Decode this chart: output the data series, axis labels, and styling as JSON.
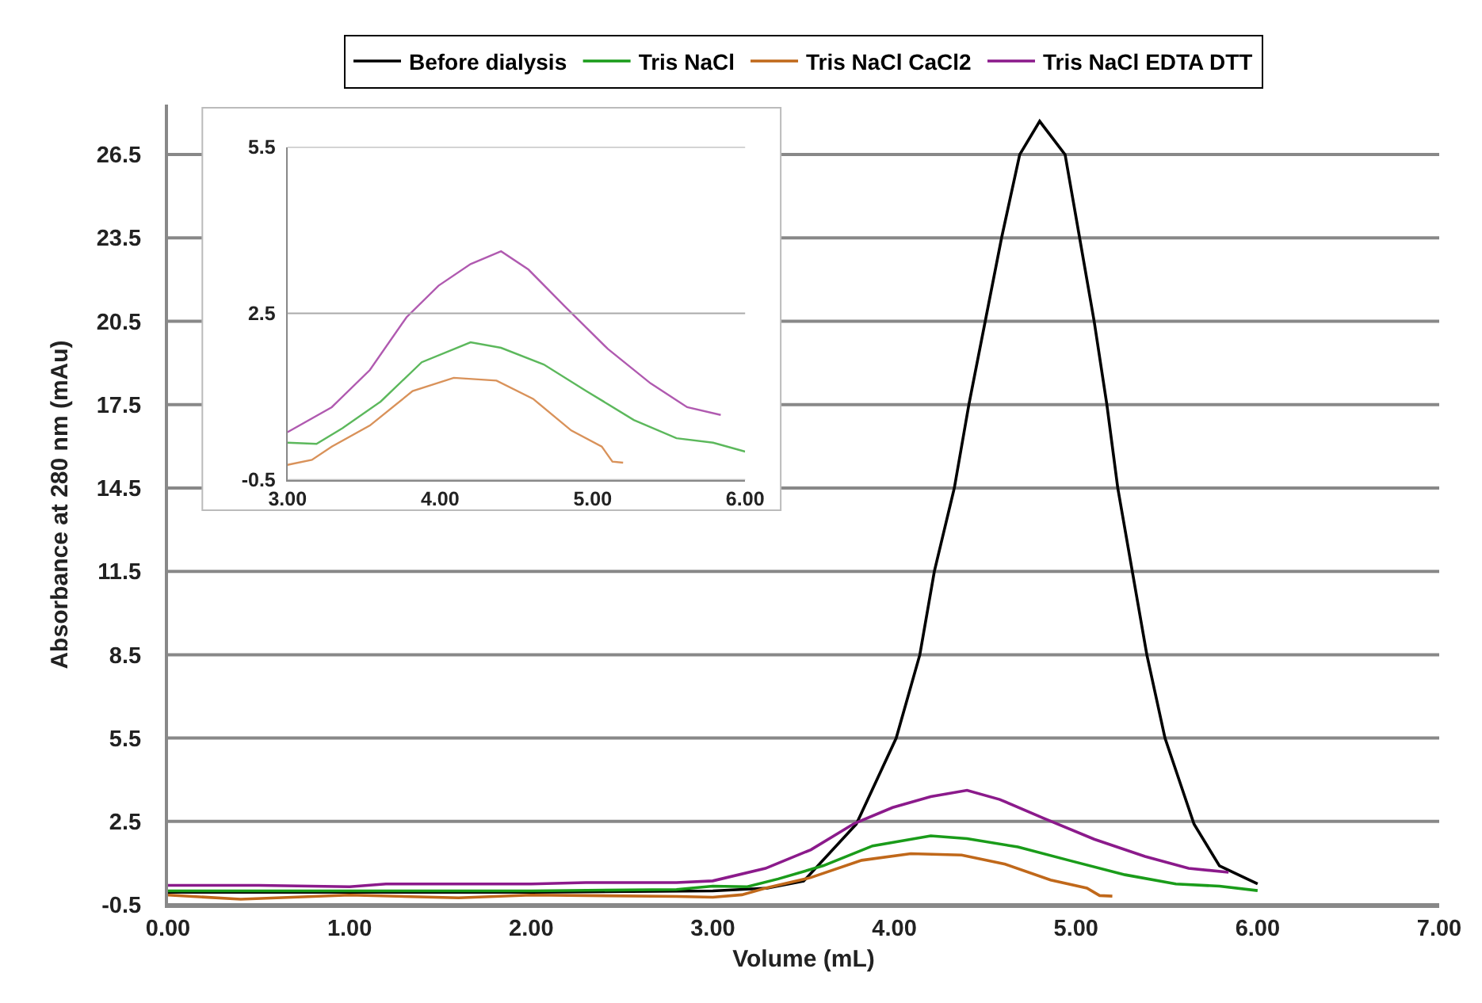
{
  "chart_data": [
    {
      "type": "line",
      "xlabel": "Volume (mL)",
      "ylabel": "Absorbance at 280 nm (mAu)",
      "xlim": [
        0,
        7
      ],
      "ylim": [
        -0.5,
        28.3
      ],
      "xticks": [
        {
          "value": 0,
          "label": "0.00"
        },
        {
          "value": 1,
          "label": "1.00"
        },
        {
          "value": 2,
          "label": "2.00"
        },
        {
          "value": 3,
          "label": "3.00"
        },
        {
          "value": 4,
          "label": "4.00"
        },
        {
          "value": 5,
          "label": "5.00"
        },
        {
          "value": 6,
          "label": "6.00"
        },
        {
          "value": 7,
          "label": "7.00"
        }
      ],
      "yticks": [
        -0.5,
        2.5,
        5.5,
        8.5,
        11.5,
        14.5,
        17.5,
        20.5,
        23.5,
        26.5
      ],
      "grid": "y",
      "legend": "top",
      "marker": "none",
      "line_style": "solid",
      "series": [
        {
          "name": "Before dialysis",
          "color": "#000000",
          "x": [
            0,
            1,
            2,
            3,
            3.3,
            3.5,
            3.79,
            4.01,
            4.14,
            4.22,
            4.33,
            4.41,
            4.5,
            4.59,
            4.69,
            4.8,
            4.94,
            5.02,
            5.1,
            5.17,
            5.23,
            5.31,
            5.39,
            5.49,
            5.65,
            5.79,
            6.0
          ],
          "values": [
            -0.05,
            -0.05,
            -0.05,
            0.0,
            0.1,
            0.35,
            2.4,
            5.5,
            8.5,
            11.5,
            14.5,
            17.5,
            20.5,
            23.5,
            26.5,
            27.7,
            26.5,
            23.5,
            20.5,
            17.5,
            14.5,
            11.5,
            8.5,
            5.5,
            2.4,
            0.9,
            0.25
          ]
        },
        {
          "name": "Tris NaCl",
          "color": "#1a9c1a",
          "x": [
            0,
            1,
            2,
            2.8,
            3.0,
            3.19,
            3.36,
            3.61,
            3.88,
            4.2,
            4.4,
            4.68,
            4.96,
            5.27,
            5.55,
            5.79,
            6.0
          ],
          "values": [
            0.0,
            0.0,
            0.0,
            0.05,
            0.17,
            0.15,
            0.43,
            0.91,
            1.62,
            1.98,
            1.88,
            1.58,
            1.1,
            0.58,
            0.25,
            0.17,
            0.01
          ]
        },
        {
          "name": "Tris NaCl CaCl2",
          "color": "#c0681a",
          "x": [
            0,
            0.4,
            1,
            1.6,
            2,
            2.8,
            3.0,
            3.16,
            3.29,
            3.54,
            3.82,
            4.09,
            4.37,
            4.61,
            4.86,
            5.06,
            5.13,
            5.2
          ],
          "values": [
            -0.15,
            -0.3,
            -0.15,
            -0.25,
            -0.15,
            -0.2,
            -0.23,
            -0.14,
            0.1,
            0.48,
            1.1,
            1.34,
            1.29,
            0.96,
            0.39,
            0.1,
            -0.17,
            -0.19
          ]
        },
        {
          "name": "Tris NaCl EDTA DTT",
          "color": "#8b1a8b",
          "x": [
            0,
            0.5,
            1,
            1.2,
            2,
            2.3,
            2.8,
            3.0,
            3.29,
            3.54,
            3.78,
            3.99,
            4.2,
            4.4,
            4.58,
            4.82,
            5.1,
            5.38,
            5.62,
            5.84
          ],
          "values": [
            0.2,
            0.2,
            0.15,
            0.25,
            0.25,
            0.3,
            0.3,
            0.36,
            0.81,
            1.48,
            2.43,
            3.0,
            3.39,
            3.62,
            3.29,
            2.62,
            1.86,
            1.24,
            0.81,
            0.67
          ]
        }
      ]
    },
    {
      "type": "line",
      "xlim": [
        3,
        6
      ],
      "ylim": [
        -0.5,
        5.5
      ],
      "xticks": [
        {
          "value": 3,
          "label": "3.00"
        },
        {
          "value": 4,
          "label": "4.00"
        },
        {
          "value": 5,
          "label": "5.00"
        },
        {
          "value": 6,
          "label": "6.00"
        }
      ],
      "yticks": [
        -0.5,
        2.5,
        5.5
      ],
      "grid": "y",
      "legend": false,
      "marker": "none",
      "line_style": "solid",
      "series": [
        {
          "color": "#5cb85c",
          "x": [
            3.0,
            3.19,
            3.36,
            3.61,
            3.88,
            4.2,
            4.4,
            4.68,
            4.96,
            5.27,
            5.55,
            5.79,
            6.0
          ],
          "values": [
            0.17,
            0.15,
            0.43,
            0.91,
            1.62,
            1.98,
            1.88,
            1.58,
            1.1,
            0.58,
            0.25,
            0.17,
            0.01
          ]
        },
        {
          "color": "#d9925a",
          "x": [
            3.0,
            3.16,
            3.29,
            3.54,
            3.82,
            4.09,
            4.37,
            4.61,
            4.86,
            5.06,
            5.13,
            5.2
          ],
          "values": [
            -0.23,
            -0.14,
            0.1,
            0.48,
            1.1,
            1.34,
            1.29,
            0.96,
            0.39,
            0.1,
            -0.17,
            -0.19
          ]
        },
        {
          "color": "#b05ab0",
          "x": [
            3.0,
            3.29,
            3.54,
            3.78,
            3.99,
            4.2,
            4.4,
            4.58,
            4.82,
            5.1,
            5.38,
            5.62,
            5.84
          ],
          "values": [
            0.36,
            0.81,
            1.48,
            2.43,
            3.0,
            3.39,
            3.62,
            3.29,
            2.62,
            1.86,
            1.24,
            0.81,
            0.67
          ]
        }
      ]
    }
  ]
}
